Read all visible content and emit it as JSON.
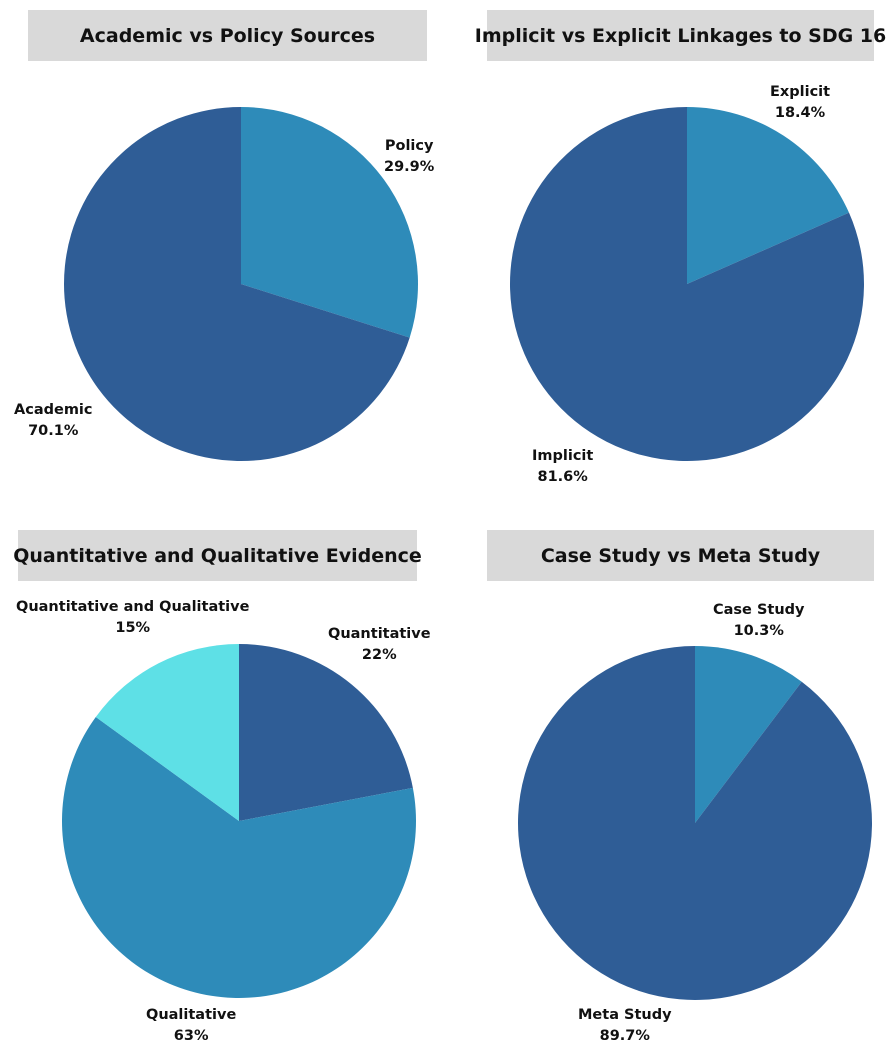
{
  "chart_data": [
    {
      "type": "pie",
      "title": "Academic vs Policy Sources",
      "slices": [
        {
          "label": "Policy",
          "display": "29.9%",
          "value": 29.9,
          "color": "#2e8bb9"
        },
        {
          "label": "Academic",
          "display": "70.1%",
          "value": 70.1,
          "color": "#2f5d96"
        }
      ]
    },
    {
      "type": "pie",
      "title": "Implicit vs Explicit Linkages to SDG 16",
      "slices": [
        {
          "label": "Explicit",
          "display": "18.4%",
          "value": 18.4,
          "color": "#2e8bb9"
        },
        {
          "label": "Implicit",
          "display": "81.6%",
          "value": 81.6,
          "color": "#2f5d96"
        }
      ]
    },
    {
      "type": "pie",
      "title": "Quantitative and Qualitative Evidence",
      "slices": [
        {
          "label": "Quantitative",
          "display": "22%",
          "value": 22,
          "color": "#2f5d96"
        },
        {
          "label": "Qualitative",
          "display": "63%",
          "value": 63,
          "color": "#2e8bb9"
        },
        {
          "label": "Quantitative and Qualitative",
          "display": "15%",
          "value": 15,
          "color": "#5ee0e6"
        }
      ]
    },
    {
      "type": "pie",
      "title": "Case Study vs Meta Study",
      "slices": [
        {
          "label": "Case Study",
          "display": "10.3%",
          "value": 10.3,
          "color": "#2e8bb9"
        },
        {
          "label": "Meta Study",
          "display": "89.7%",
          "value": 89.7,
          "color": "#2f5d96"
        }
      ]
    }
  ]
}
